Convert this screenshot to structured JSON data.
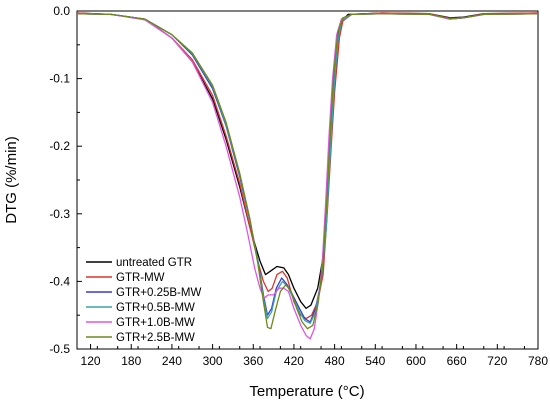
{
  "chart_data": {
    "type": "line",
    "xlabel": "Temperature (°C)",
    "ylabel": "DTG (%/min)",
    "xlim": [
      100,
      780
    ],
    "ylim": [
      -0.5,
      0.0
    ],
    "x_ticks": [
      120,
      180,
      240,
      300,
      360,
      420,
      480,
      540,
      600,
      660,
      720,
      780
    ],
    "y_ticks": [
      0.0,
      -0.1,
      -0.2,
      -0.3,
      -0.4,
      -0.5
    ],
    "y_tick_labels": [
      "0.0",
      "-0.1",
      "-0.2",
      "-0.3",
      "-0.4",
      "-0.5"
    ],
    "grid": false,
    "legend_position": "lower-left",
    "series": [
      {
        "name": "untreated GTR",
        "color": "#000000",
        "points": [
          [
            100,
            -0.003
          ],
          [
            150,
            -0.005
          ],
          [
            200,
            -0.012
          ],
          [
            240,
            -0.04
          ],
          [
            270,
            -0.075
          ],
          [
            300,
            -0.13
          ],
          [
            320,
            -0.19
          ],
          [
            340,
            -0.26
          ],
          [
            355,
            -0.32
          ],
          [
            370,
            -0.37
          ],
          [
            378,
            -0.39
          ],
          [
            385,
            -0.385
          ],
          [
            395,
            -0.378
          ],
          [
            405,
            -0.38
          ],
          [
            412,
            -0.39
          ],
          [
            420,
            -0.41
          ],
          [
            430,
            -0.43
          ],
          [
            438,
            -0.44
          ],
          [
            445,
            -0.435
          ],
          [
            455,
            -0.41
          ],
          [
            462,
            -0.37
          ],
          [
            468,
            -0.3
          ],
          [
            473,
            -0.2
          ],
          [
            478,
            -0.12
          ],
          [
            485,
            -0.04
          ],
          [
            490,
            -0.015
          ],
          [
            500,
            -0.005
          ],
          [
            550,
            -0.003
          ],
          [
            620,
            -0.004
          ],
          [
            650,
            -0.01
          ],
          [
            670,
            -0.009
          ],
          [
            700,
            -0.004
          ],
          [
            780,
            -0.003
          ]
        ]
      },
      {
        "name": "GTR-MW",
        "color": "#d9362b",
        "points": [
          [
            100,
            -0.003
          ],
          [
            150,
            -0.005
          ],
          [
            200,
            -0.012
          ],
          [
            240,
            -0.04
          ],
          [
            270,
            -0.072
          ],
          [
            300,
            -0.125
          ],
          [
            320,
            -0.185
          ],
          [
            340,
            -0.255
          ],
          [
            355,
            -0.32
          ],
          [
            368,
            -0.375
          ],
          [
            375,
            -0.4
          ],
          [
            382,
            -0.415
          ],
          [
            388,
            -0.41
          ],
          [
            395,
            -0.39
          ],
          [
            403,
            -0.385
          ],
          [
            410,
            -0.395
          ],
          [
            420,
            -0.43
          ],
          [
            430,
            -0.45
          ],
          [
            438,
            -0.455
          ],
          [
            446,
            -0.45
          ],
          [
            455,
            -0.43
          ],
          [
            463,
            -0.39
          ],
          [
            469,
            -0.3
          ],
          [
            475,
            -0.2
          ],
          [
            480,
            -0.12
          ],
          [
            487,
            -0.04
          ],
          [
            492,
            -0.015
          ],
          [
            505,
            -0.005
          ],
          [
            550,
            -0.003
          ],
          [
            620,
            -0.004
          ],
          [
            650,
            -0.011
          ],
          [
            670,
            -0.01
          ],
          [
            700,
            -0.004
          ],
          [
            780,
            -0.003
          ]
        ]
      },
      {
        "name": "GTR+0.25B-MW",
        "color": "#3a3ad6",
        "points": [
          [
            100,
            -0.004
          ],
          [
            150,
            -0.005
          ],
          [
            200,
            -0.012
          ],
          [
            240,
            -0.035
          ],
          [
            270,
            -0.065
          ],
          [
            300,
            -0.115
          ],
          [
            320,
            -0.17
          ],
          [
            340,
            -0.245
          ],
          [
            355,
            -0.31
          ],
          [
            367,
            -0.37
          ],
          [
            375,
            -0.42
          ],
          [
            381,
            -0.45
          ],
          [
            387,
            -0.44
          ],
          [
            394,
            -0.41
          ],
          [
            402,
            -0.395
          ],
          [
            410,
            -0.405
          ],
          [
            418,
            -0.42
          ],
          [
            428,
            -0.44
          ],
          [
            436,
            -0.455
          ],
          [
            444,
            -0.46
          ],
          [
            452,
            -0.44
          ],
          [
            460,
            -0.4
          ],
          [
            467,
            -0.33
          ],
          [
            473,
            -0.22
          ],
          [
            478,
            -0.13
          ],
          [
            484,
            -0.05
          ],
          [
            490,
            -0.015
          ],
          [
            505,
            -0.005
          ],
          [
            550,
            -0.004
          ],
          [
            620,
            -0.005
          ],
          [
            650,
            -0.012
          ],
          [
            670,
            -0.01
          ],
          [
            700,
            -0.005
          ],
          [
            780,
            -0.004
          ]
        ]
      },
      {
        "name": "GTR+0.5B-MW",
        "color": "#3aa6a0",
        "points": [
          [
            100,
            -0.004
          ],
          [
            150,
            -0.005
          ],
          [
            200,
            -0.012
          ],
          [
            240,
            -0.035
          ],
          [
            270,
            -0.063
          ],
          [
            300,
            -0.112
          ],
          [
            320,
            -0.168
          ],
          [
            340,
            -0.242
          ],
          [
            355,
            -0.308
          ],
          [
            367,
            -0.372
          ],
          [
            375,
            -0.425
          ],
          [
            381,
            -0.455
          ],
          [
            387,
            -0.445
          ],
          [
            394,
            -0.415
          ],
          [
            403,
            -0.4
          ],
          [
            411,
            -0.408
          ],
          [
            419,
            -0.425
          ],
          [
            428,
            -0.445
          ],
          [
            436,
            -0.458
          ],
          [
            444,
            -0.462
          ],
          [
            452,
            -0.445
          ],
          [
            460,
            -0.4
          ],
          [
            467,
            -0.33
          ],
          [
            473,
            -0.22
          ],
          [
            478,
            -0.13
          ],
          [
            484,
            -0.05
          ],
          [
            490,
            -0.015
          ],
          [
            505,
            -0.005
          ],
          [
            550,
            -0.004
          ],
          [
            620,
            -0.005
          ],
          [
            650,
            -0.012
          ],
          [
            670,
            -0.01
          ],
          [
            700,
            -0.005
          ],
          [
            780,
            -0.004
          ]
        ]
      },
      {
        "name": "GTR+1.0B-MW",
        "color": "#e056e0",
        "points": [
          [
            100,
            -0.004
          ],
          [
            150,
            -0.005
          ],
          [
            200,
            -0.013
          ],
          [
            240,
            -0.04
          ],
          [
            270,
            -0.075
          ],
          [
            300,
            -0.135
          ],
          [
            320,
            -0.2
          ],
          [
            340,
            -0.275
          ],
          [
            352,
            -0.33
          ],
          [
            362,
            -0.38
          ],
          [
            370,
            -0.41
          ],
          [
            376,
            -0.425
          ],
          [
            382,
            -0.42
          ],
          [
            390,
            -0.42
          ],
          [
            398,
            -0.41
          ],
          [
            405,
            -0.41
          ],
          [
            412,
            -0.415
          ],
          [
            420,
            -0.44
          ],
          [
            430,
            -0.465
          ],
          [
            438,
            -0.48
          ],
          [
            444,
            -0.485
          ],
          [
            450,
            -0.47
          ],
          [
            456,
            -0.43
          ],
          [
            462,
            -0.37
          ],
          [
            467,
            -0.28
          ],
          [
            472,
            -0.18
          ],
          [
            477,
            -0.1
          ],
          [
            483,
            -0.035
          ],
          [
            490,
            -0.012
          ],
          [
            505,
            -0.005
          ],
          [
            550,
            -0.004
          ],
          [
            620,
            -0.005
          ],
          [
            650,
            -0.012
          ],
          [
            670,
            -0.01
          ],
          [
            700,
            -0.005
          ],
          [
            780,
            -0.004
          ]
        ]
      },
      {
        "name": "GTR+2.5B-MW",
        "color": "#6b8a1a",
        "points": [
          [
            100,
            -0.004
          ],
          [
            150,
            -0.005
          ],
          [
            200,
            -0.012
          ],
          [
            240,
            -0.035
          ],
          [
            270,
            -0.062
          ],
          [
            300,
            -0.11
          ],
          [
            320,
            -0.165
          ],
          [
            340,
            -0.24
          ],
          [
            355,
            -0.308
          ],
          [
            367,
            -0.375
          ],
          [
            375,
            -0.43
          ],
          [
            381,
            -0.468
          ],
          [
            386,
            -0.47
          ],
          [
            392,
            -0.445
          ],
          [
            400,
            -0.415
          ],
          [
            408,
            -0.405
          ],
          [
            416,
            -0.415
          ],
          [
            424,
            -0.44
          ],
          [
            432,
            -0.46
          ],
          [
            440,
            -0.47
          ],
          [
            448,
            -0.465
          ],
          [
            456,
            -0.43
          ],
          [
            463,
            -0.37
          ],
          [
            469,
            -0.27
          ],
          [
            474,
            -0.17
          ],
          [
            479,
            -0.09
          ],
          [
            485,
            -0.03
          ],
          [
            492,
            -0.01
          ],
          [
            505,
            -0.005
          ],
          [
            550,
            -0.004
          ],
          [
            620,
            -0.005
          ],
          [
            650,
            -0.011
          ],
          [
            670,
            -0.01
          ],
          [
            700,
            -0.005
          ],
          [
            780,
            -0.004
          ]
        ]
      }
    ]
  }
}
